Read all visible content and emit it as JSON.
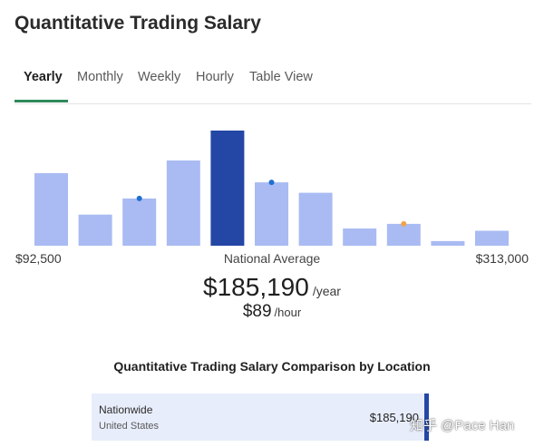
{
  "page": {
    "title": "Quantitative Trading Salary"
  },
  "tabs": [
    {
      "label": "Yearly",
      "active": true
    },
    {
      "label": "Monthly",
      "active": false
    },
    {
      "label": "Weekly",
      "active": false
    },
    {
      "label": "Hourly",
      "active": false
    },
    {
      "label": "Table View",
      "active": false
    }
  ],
  "histogram": {
    "min_label": "$92,500",
    "max_label": "$313,000",
    "average_caption": "National Average",
    "colors": {
      "bar": "#a9bbf2",
      "highlight": "#2447a6",
      "dot_blue": "#1f6fd1",
      "dot_orange": "#f0a44a"
    },
    "bars": [
      {
        "relative_height": 0.63,
        "highlight": false,
        "marker": null
      },
      {
        "relative_height": 0.27,
        "highlight": false,
        "marker": null
      },
      {
        "relative_height": 0.41,
        "highlight": false,
        "marker": "blue"
      },
      {
        "relative_height": 0.74,
        "highlight": false,
        "marker": null
      },
      {
        "relative_height": 1.0,
        "highlight": true,
        "marker": null
      },
      {
        "relative_height": 0.55,
        "highlight": false,
        "marker": "blue"
      },
      {
        "relative_height": 0.46,
        "highlight": false,
        "marker": null
      },
      {
        "relative_height": 0.15,
        "highlight": false,
        "marker": null
      },
      {
        "relative_height": 0.19,
        "highlight": false,
        "marker": "orange"
      },
      {
        "relative_height": 0.04,
        "highlight": false,
        "marker": null
      },
      {
        "relative_height": 0.13,
        "highlight": false,
        "marker": null
      }
    ]
  },
  "average": {
    "yearly_value": "$185,190",
    "yearly_unit": "/year",
    "hourly_value": "$89",
    "hourly_unit": "/hour"
  },
  "comparison": {
    "title": "Quantitative Trading Salary Comparison by Location",
    "locations": [
      {
        "name": "Nationwide",
        "sub": "United States",
        "value": "$185,190"
      }
    ]
  },
  "watermark": {
    "text": "知乎 @Pace Han"
  }
}
